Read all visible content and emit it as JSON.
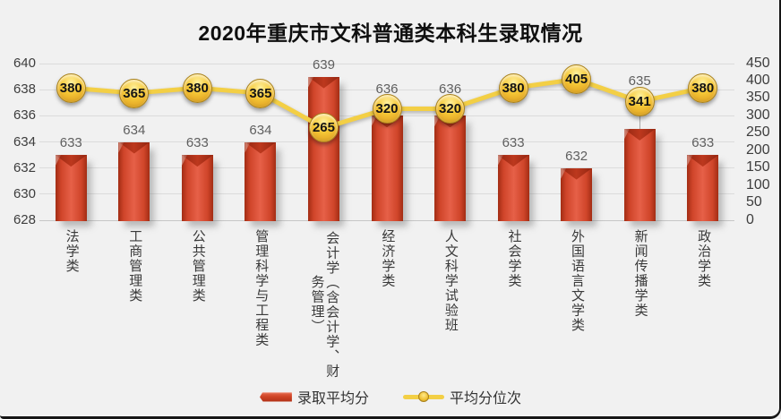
{
  "title": "2020年重庆市文科普通类本科生录取情况",
  "legend": {
    "bar_label": "录取平均分",
    "line_label": "平均分位次"
  },
  "axes": {
    "left_ticks": [
      640,
      638,
      636,
      634,
      632,
      630,
      628
    ],
    "right_ticks": [
      450,
      400,
      350,
      300,
      250,
      200,
      150,
      100,
      50,
      0
    ]
  },
  "chart_data": {
    "type": "bar",
    "subtype": "combo-bar-line-dual-axis",
    "title": "2020年重庆市文科普通类本科生录取情况",
    "categories": [
      "法学类",
      "工商管理类",
      "公共管理类",
      "管理科学与工程类",
      "会计学（含会计学、财务管理）",
      "经济学类",
      "人文科学试验班",
      "社会学类",
      "外国语言文学类",
      "新闻传播学类",
      "政治学类"
    ],
    "series": [
      {
        "name": "录取平均分",
        "type": "bar",
        "axis": "left",
        "values": [
          633,
          634,
          633,
          634,
          639,
          636,
          636,
          633,
          632,
          635,
          633
        ]
      },
      {
        "name": "平均分位次",
        "type": "line",
        "axis": "right",
        "values": [
          380,
          365,
          380,
          365,
          265,
          320,
          320,
          380,
          405,
          341,
          380
        ]
      }
    ],
    "left_axis": {
      "min": 628,
      "max": 640,
      "step": 2
    },
    "right_axis": {
      "min": 0,
      "max": 450,
      "step": 50
    },
    "grid": "horizontal",
    "legend_position": "bottom",
    "data_labels": "on"
  },
  "colors": {
    "bar_main": "#D0452A",
    "bar_light": "#E66048",
    "bar_dark": "#A22D14",
    "line": "#F3CF45",
    "marker_face": "#F6C937",
    "marker_rim": "#A8811C",
    "grid": "#DBDBDB",
    "bar_label_text": "#5F5F5F",
    "axis_text": "#3D3D3D",
    "title_text": "#0F0F0F",
    "background": "#F1F1F1",
    "frame_border": "#161616"
  }
}
